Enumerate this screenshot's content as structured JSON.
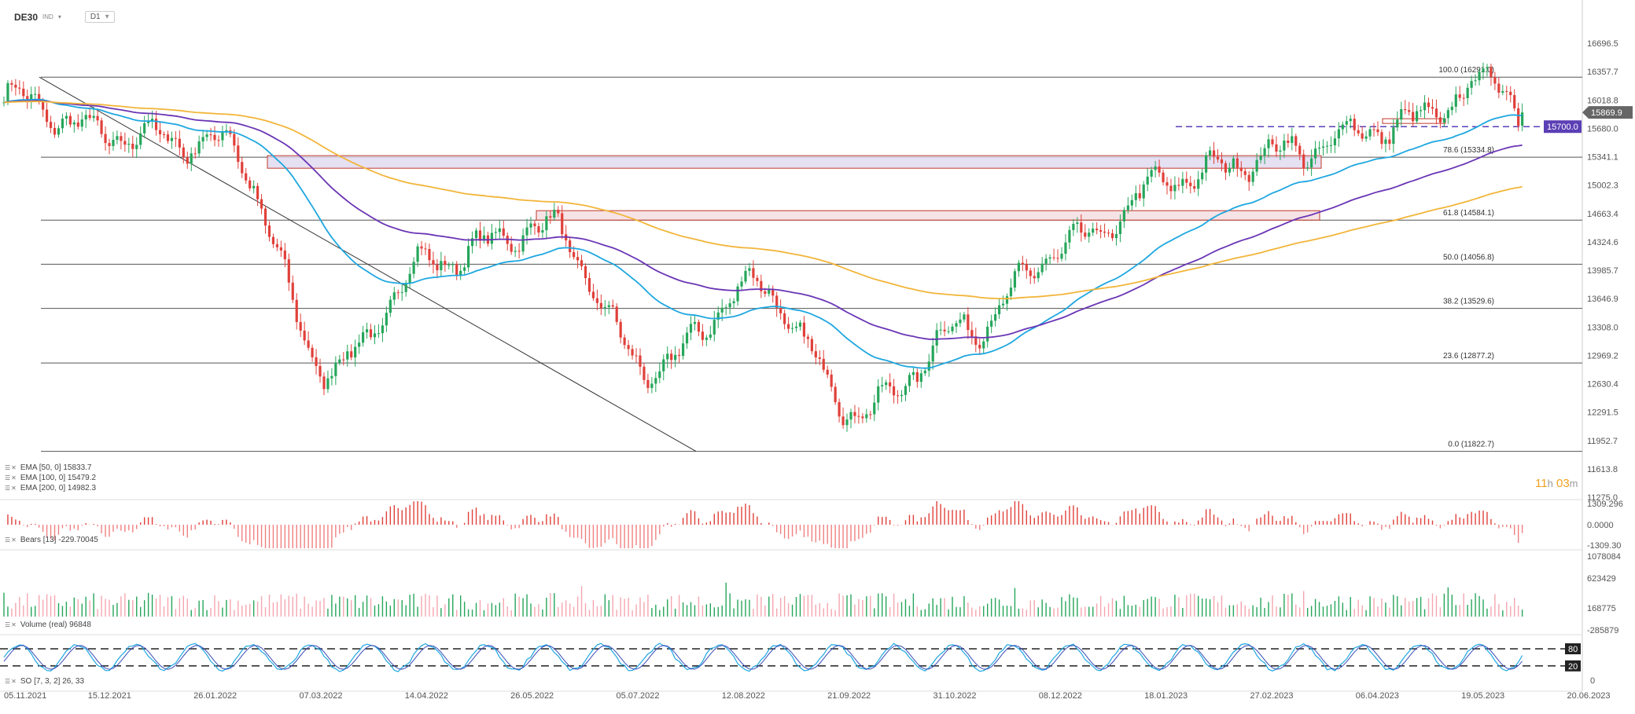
{
  "header": {
    "symbol": "DE30",
    "type": "IND",
    "timeframe": "D1"
  },
  "price_axis": {
    "labels": [
      "16696.5",
      "16357.7",
      "16018.8",
      "15680.0",
      "15341.1",
      "15002.3",
      "14663.4",
      "14324.6",
      "13985.7",
      "13646.9",
      "13308.0",
      "12969.2",
      "12630.4",
      "12291.5",
      "11952.7",
      "11613.8",
      "11275.0"
    ],
    "current_price": "15869.9",
    "alert_price": "15700.0"
  },
  "time_axis": {
    "labels": [
      "05.11.2021",
      "15.12.2021",
      "26.01.2022",
      "07.03.2022",
      "14.04.2022",
      "26.05.2022",
      "05.07.2022",
      "12.08.2022",
      "21.09.2022",
      "31.10.2022",
      "08.12.2022",
      "18.01.2023",
      "27.02.2023",
      "06.04.2023",
      "19.05.2023",
      "20.06.2023"
    ]
  },
  "fib_levels": [
    {
      "label": "100.0 (16291.0)",
      "value": 16291.0
    },
    {
      "label": "78.6 (15334.8)",
      "value": 15334.8
    },
    {
      "label": "61.8 (14584.1)",
      "value": 14584.1
    },
    {
      "label": "50.0 (14056.8)",
      "value": 14056.8
    },
    {
      "label": "38.2 (13529.6)",
      "value": 13529.6
    },
    {
      "label": "23.6 (12877.2)",
      "value": 12877.2
    },
    {
      "label": "0.0 (11822.7)",
      "value": 11822.7
    }
  ],
  "legend": {
    "ema50": "EMA [50, 0] 15833.7",
    "ema100": "EMA [100, 0] 15479.2",
    "ema200": "EMA [200, 0] 14982.3",
    "bears": "Bears [13] -229.70045",
    "volume": "Volume (real) 96848",
    "so": "SO [7, 3, 2] 26, 33"
  },
  "timer": {
    "hours": "11",
    "h_unit": "h",
    "minutes": "03",
    "m_unit": "m"
  },
  "bears_axis": [
    "1309.296",
    "0.0000",
    "-1309.30"
  ],
  "volume_axis": [
    "1078084",
    "623429",
    "168775",
    "-285879"
  ],
  "so_axis": {
    "upper": "80",
    "lower": "20",
    "zero": "0"
  },
  "colors": {
    "ema50": "#1ea7e0",
    "ema100": "#6a35b5",
    "ema200": "#f2b53a",
    "bull": "#26a65b",
    "bear": "#e0403a",
    "zone": "#e0d8f0"
  },
  "chart_data": {
    "type": "candlestick",
    "x_range": [
      "05.11.2021",
      "20.06.2023"
    ],
    "y_range": [
      11275.0,
      16696.5
    ],
    "key_points": [
      {
        "date": "05.11.2021",
        "close": 16050
      },
      {
        "date": "15.12.2021",
        "close": 15600
      },
      {
        "date": "26.01.2022",
        "close": 15500
      },
      {
        "date": "07.03.2022",
        "close": 12800
      },
      {
        "date": "14.04.2022",
        "close": 14100
      },
      {
        "date": "26.05.2022",
        "close": 14500
      },
      {
        "date": "05.07.2022",
        "close": 12800
      },
      {
        "date": "12.08.2022",
        "close": 13800
      },
      {
        "date": "21.09.2022",
        "close": 12300
      },
      {
        "date": "31.10.2022",
        "close": 13300
      },
      {
        "date": "08.12.2022",
        "close": 14300
      },
      {
        "date": "18.01.2023",
        "close": 15100
      },
      {
        "date": "27.02.2023",
        "close": 15400
      },
      {
        "date": "06.04.2023",
        "close": 15700
      },
      {
        "date": "19.05.2023",
        "close": 16250
      },
      {
        "date": "26.05.2023",
        "close": 15869.9
      }
    ],
    "ema": [
      {
        "name": "EMA [50, 0]",
        "last": 15833.7
      },
      {
        "name": "EMA [100, 0]",
        "last": 15479.2
      },
      {
        "name": "EMA [200, 0]",
        "last": 14982.3
      }
    ],
    "stochastic_levels": [
      80,
      20
    ]
  }
}
